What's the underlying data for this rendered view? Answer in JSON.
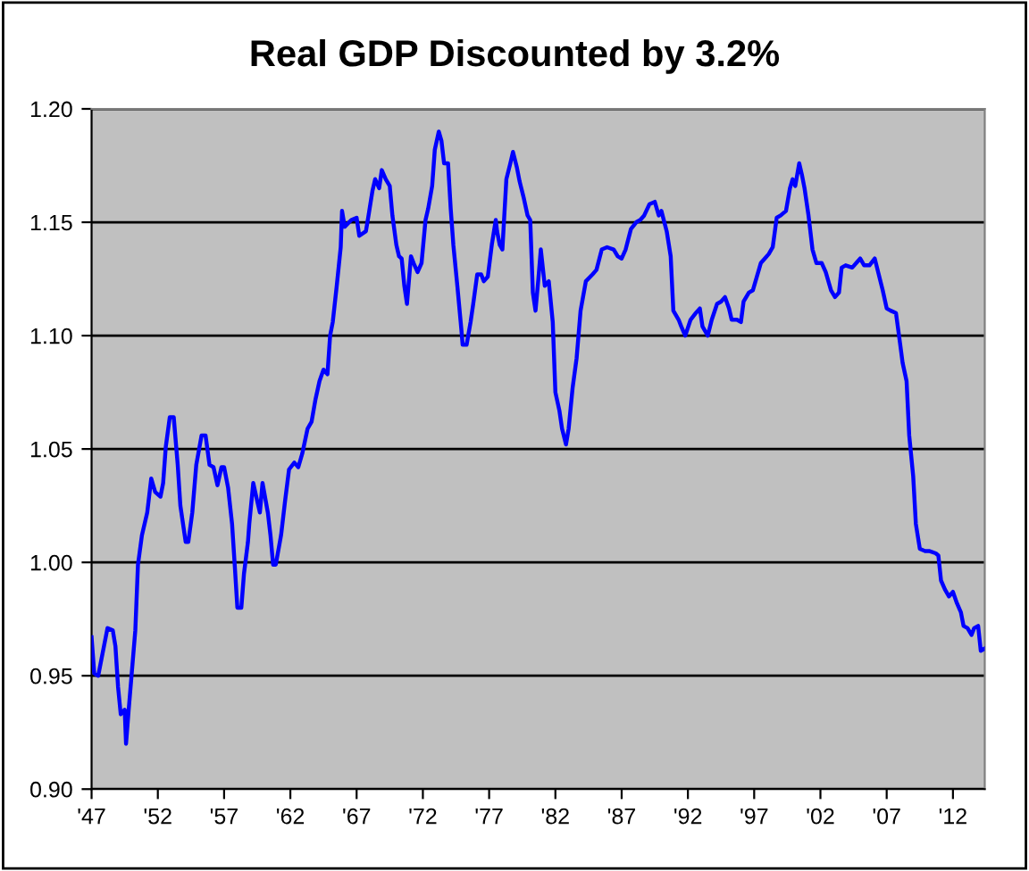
{
  "chart_data": {
    "type": "line",
    "title": "Real GDP Discounted by 3.2%",
    "xlim": [
      1947,
      2014.4
    ],
    "xticks": [
      {
        "value": 1947,
        "label": "'47"
      },
      {
        "value": 1952,
        "label": "'52"
      },
      {
        "value": 1957,
        "label": "'57"
      },
      {
        "value": 1962,
        "label": "'62"
      },
      {
        "value": 1967,
        "label": "'67"
      },
      {
        "value": 1972,
        "label": "'72"
      },
      {
        "value": 1977,
        "label": "'77"
      },
      {
        "value": 1982,
        "label": "'82"
      },
      {
        "value": 1987,
        "label": "'87"
      },
      {
        "value": 1992,
        "label": "'92"
      },
      {
        "value": 1997,
        "label": "'97"
      },
      {
        "value": 2002,
        "label": "'02"
      },
      {
        "value": 2007,
        "label": "'07"
      },
      {
        "value": 2012,
        "label": "'12"
      }
    ],
    "ylim": [
      0.9,
      1.2
    ],
    "yticks": [
      {
        "value": 0.9,
        "label": "0.90"
      },
      {
        "value": 0.95,
        "label": "0.95"
      },
      {
        "value": 1.0,
        "label": "1.00"
      },
      {
        "value": 1.05,
        "label": "1.05"
      },
      {
        "value": 1.1,
        "label": "1.10"
      },
      {
        "value": 1.15,
        "label": "1.15"
      },
      {
        "value": 1.2,
        "label": "1.20"
      }
    ],
    "grid": "y",
    "legend": false,
    "marker": "none",
    "line_style": "solid",
    "series": [
      {
        "color": "#0000ff",
        "x": [
          1947.0,
          1947.2,
          1947.5,
          1948.2,
          1948.6,
          1948.8,
          1949.0,
          1949.2,
          1949.5,
          1949.6,
          1949.8,
          1950.0,
          1950.3,
          1950.5,
          1950.8,
          1951.2,
          1951.5,
          1951.8,
          1952.2,
          1952.4,
          1952.6,
          1952.9,
          1953.2,
          1953.5,
          1953.7,
          1954.1,
          1954.3,
          1954.6,
          1954.9,
          1955.3,
          1955.6,
          1955.9,
          1956.2,
          1956.5,
          1956.8,
          1957.0,
          1957.3,
          1957.6,
          1957.8,
          1958.0,
          1958.3,
          1958.5,
          1958.8,
          1958.9,
          1959.2,
          1959.5,
          1959.7,
          1959.9,
          1960.3,
          1960.5,
          1960.7,
          1960.9,
          1961.3,
          1961.6,
          1961.9,
          1962.3,
          1962.6,
          1962.9,
          1963.3,
          1963.6,
          1963.9,
          1964.2,
          1964.5,
          1964.8,
          1965.0,
          1965.2,
          1965.5,
          1965.8,
          1965.9,
          1966.1,
          1966.6,
          1967.0,
          1967.2,
          1967.7,
          1967.9,
          1968.2,
          1968.4,
          1968.7,
          1968.9,
          1969.2,
          1969.5,
          1969.7,
          1970.0,
          1970.2,
          1970.4,
          1970.6,
          1970.8,
          1971.1,
          1971.3,
          1971.6,
          1971.9,
          1972.2,
          1972.4,
          1972.7,
          1972.9,
          1973.2,
          1973.4,
          1973.6,
          1973.9,
          1974.1,
          1974.3,
          1974.6,
          1974.9,
          1975.0,
          1975.3,
          1975.6,
          1975.8,
          1976.1,
          1976.4,
          1976.6,
          1976.9,
          1977.2,
          1977.5,
          1977.6,
          1977.8,
          1978.0,
          1978.3,
          1978.6,
          1978.8,
          1979.1,
          1979.3,
          1979.6,
          1979.9,
          1980.1,
          1980.3,
          1980.5,
          1980.7,
          1980.9,
          1981.2,
          1981.5,
          1981.8,
          1982.0,
          1982.3,
          1982.5,
          1982.8,
          1983.0,
          1983.3,
          1983.6,
          1983.9,
          1984.3,
          1984.8,
          1985.1,
          1985.5,
          1985.9,
          1986.4,
          1986.7,
          1987.0,
          1987.3,
          1987.7,
          1988.1,
          1988.4,
          1988.7,
          1989.1,
          1989.5,
          1989.8,
          1990.0,
          1990.4,
          1990.7,
          1990.9,
          1991.3,
          1991.5,
          1991.8,
          1992.2,
          1992.6,
          1992.9,
          1993.1,
          1993.5,
          1993.8,
          1994.2,
          1994.5,
          1994.8,
          1995.1,
          1995.3,
          1995.7,
          1996.0,
          1996.2,
          1996.6,
          1996.9,
          1997.2,
          1997.5,
          1997.8,
          1998.1,
          1998.4,
          1998.7,
          1999.0,
          1999.4,
          1999.7,
          1999.9,
          2000.1,
          2000.4,
          2000.6,
          2000.8,
          2001.1,
          2001.4,
          2001.7,
          2002.1,
          2002.4,
          2002.8,
          2003.1,
          2003.4,
          2003.6,
          2003.9,
          2004.4,
          2004.7,
          2005.0,
          2005.3,
          2005.7,
          2006.1,
          2006.4,
          2006.7,
          2007.0,
          2007.3,
          2007.7,
          2008.0,
          2008.2,
          2008.5,
          2008.7,
          2009.0,
          2009.2,
          2009.5,
          2009.9,
          2010.2,
          2010.7,
          2010.9,
          2011.1,
          2011.4,
          2011.7,
          2012.0,
          2012.3,
          2012.6,
          2012.8,
          2013.1,
          2013.4,
          2013.6,
          2013.9,
          2014.1,
          2014.4
        ],
        "values": [
          0.967,
          0.951,
          0.95,
          0.971,
          0.97,
          0.963,
          0.945,
          0.933,
          0.935,
          0.92,
          0.935,
          0.949,
          0.97,
          0.999,
          1.012,
          1.022,
          1.037,
          1.031,
          1.029,
          1.035,
          1.051,
          1.064,
          1.064,
          1.043,
          1.025,
          1.009,
          1.009,
          1.022,
          1.043,
          1.056,
          1.056,
          1.043,
          1.042,
          1.034,
          1.042,
          1.042,
          1.033,
          1.017,
          0.999,
          0.98,
          0.98,
          0.995,
          1.009,
          1.017,
          1.035,
          1.027,
          1.022,
          1.035,
          1.022,
          1.012,
          0.999,
          0.999,
          1.012,
          1.027,
          1.041,
          1.044,
          1.042,
          1.048,
          1.059,
          1.062,
          1.072,
          1.08,
          1.085,
          1.083,
          1.1,
          1.106,
          1.122,
          1.139,
          1.155,
          1.148,
          1.151,
          1.152,
          1.144,
          1.146,
          1.153,
          1.164,
          1.169,
          1.165,
          1.173,
          1.169,
          1.166,
          1.153,
          1.14,
          1.135,
          1.134,
          1.122,
          1.114,
          1.135,
          1.132,
          1.128,
          1.132,
          1.151,
          1.156,
          1.166,
          1.182,
          1.19,
          1.186,
          1.176,
          1.176,
          1.156,
          1.14,
          1.122,
          1.103,
          1.096,
          1.096,
          1.106,
          1.114,
          1.127,
          1.127,
          1.124,
          1.126,
          1.14,
          1.151,
          1.146,
          1.14,
          1.138,
          1.169,
          1.176,
          1.181,
          1.174,
          1.168,
          1.161,
          1.153,
          1.151,
          1.119,
          1.111,
          1.124,
          1.138,
          1.122,
          1.124,
          1.106,
          1.075,
          1.067,
          1.059,
          1.052,
          1.059,
          1.077,
          1.09,
          1.111,
          1.124,
          1.127,
          1.129,
          1.138,
          1.139,
          1.138,
          1.135,
          1.134,
          1.138,
          1.147,
          1.15,
          1.151,
          1.153,
          1.158,
          1.159,
          1.153,
          1.155,
          1.146,
          1.135,
          1.111,
          1.107,
          1.104,
          1.1,
          1.107,
          1.11,
          1.112,
          1.104,
          1.1,
          1.107,
          1.114,
          1.115,
          1.117,
          1.112,
          1.107,
          1.107,
          1.106,
          1.115,
          1.119,
          1.12,
          1.126,
          1.132,
          1.134,
          1.136,
          1.139,
          1.152,
          1.153,
          1.155,
          1.165,
          1.169,
          1.166,
          1.176,
          1.171,
          1.165,
          1.153,
          1.138,
          1.132,
          1.132,
          1.128,
          1.12,
          1.117,
          1.119,
          1.13,
          1.131,
          1.13,
          1.132,
          1.134,
          1.131,
          1.131,
          1.134,
          1.127,
          1.12,
          1.112,
          1.111,
          1.11,
          1.097,
          1.088,
          1.08,
          1.056,
          1.038,
          1.017,
          1.006,
          1.005,
          1.005,
          1.004,
          1.003,
          0.992,
          0.988,
          0.985,
          0.987,
          0.982,
          0.978,
          0.972,
          0.971,
          0.968,
          0.971,
          0.972,
          0.961,
          0.962
        ]
      }
    ]
  }
}
